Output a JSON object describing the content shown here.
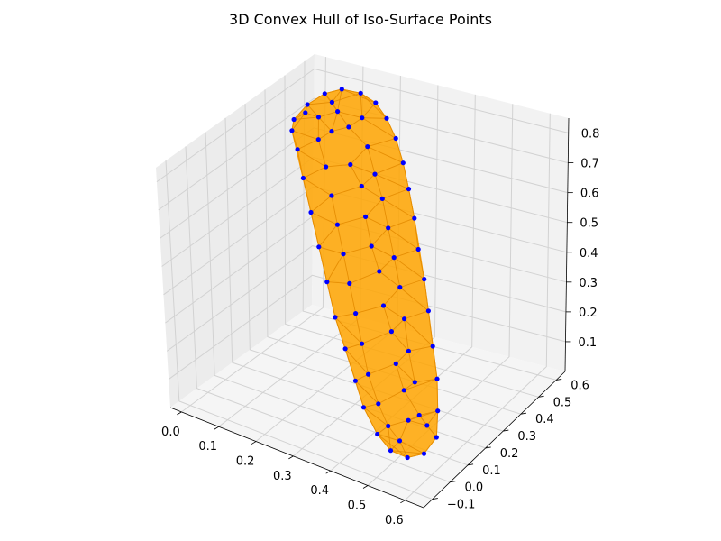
{
  "chart_data": {
    "type": "scatter",
    "subtype": "3d-convex-hull",
    "title": "3D Convex Hull of Iso-Surface Points",
    "xlabel": "",
    "ylabel": "",
    "zlabel": "",
    "x_ticks": [
      "0.0",
      "0.1",
      "0.2",
      "0.3",
      "0.4",
      "0.5",
      "0.6"
    ],
    "y_ticks": [
      "−0.1",
      "0.0",
      "0.1",
      "0.2",
      "0.3",
      "0.4",
      "0.5",
      "0.6"
    ],
    "z_ticks": [
      "0.1",
      "0.2",
      "0.3",
      "0.4",
      "0.5",
      "0.6",
      "0.7",
      "0.8"
    ],
    "xlim": [
      -0.03,
      0.65
    ],
    "ylim": [
      -0.15,
      0.65
    ],
    "zlim": [
      0.0,
      0.85
    ],
    "grid": true,
    "hull_color": "#ffa500",
    "hull_edge_color": "#f59a00",
    "point_color": "#0000ff",
    "points": [
      [
        0.02,
        0.45,
        0.74
      ],
      [
        0.03,
        0.5,
        0.77
      ],
      [
        0.05,
        0.55,
        0.79
      ],
      [
        0.08,
        0.58,
        0.8
      ],
      [
        0.12,
        0.6,
        0.79
      ],
      [
        0.16,
        0.6,
        0.77
      ],
      [
        0.2,
        0.58,
        0.74
      ],
      [
        0.24,
        0.55,
        0.7
      ],
      [
        0.28,
        0.51,
        0.65
      ],
      [
        0.32,
        0.46,
        0.6
      ],
      [
        0.36,
        0.41,
        0.54
      ],
      [
        0.4,
        0.35,
        0.48
      ],
      [
        0.44,
        0.3,
        0.42
      ],
      [
        0.48,
        0.24,
        0.36
      ],
      [
        0.52,
        0.18,
        0.29
      ],
      [
        0.56,
        0.12,
        0.23
      ],
      [
        0.59,
        0.06,
        0.17
      ],
      [
        0.61,
        0.01,
        0.12
      ],
      [
        0.6,
        -0.04,
        0.09
      ],
      [
        0.57,
        -0.07,
        0.08
      ],
      [
        0.53,
        -0.08,
        0.09
      ],
      [
        0.49,
        -0.07,
        0.12
      ],
      [
        0.44,
        -0.04,
        0.17
      ],
      [
        0.4,
        0.0,
        0.22
      ],
      [
        0.35,
        0.05,
        0.28
      ],
      [
        0.3,
        0.1,
        0.34
      ],
      [
        0.25,
        0.16,
        0.41
      ],
      [
        0.2,
        0.22,
        0.48
      ],
      [
        0.15,
        0.28,
        0.55
      ],
      [
        0.1,
        0.34,
        0.62
      ],
      [
        0.06,
        0.39,
        0.68
      ],
      [
        0.03,
        0.42,
        0.72
      ],
      [
        0.1,
        0.52,
        0.76
      ],
      [
        0.15,
        0.55,
        0.74
      ],
      [
        0.19,
        0.5,
        0.68
      ],
      [
        0.23,
        0.46,
        0.62
      ],
      [
        0.27,
        0.42,
        0.57
      ],
      [
        0.31,
        0.37,
        0.51
      ],
      [
        0.35,
        0.32,
        0.45
      ],
      [
        0.39,
        0.27,
        0.39
      ],
      [
        0.43,
        0.21,
        0.33
      ],
      [
        0.47,
        0.15,
        0.27
      ],
      [
        0.51,
        0.1,
        0.21
      ],
      [
        0.55,
        0.04,
        0.15
      ],
      [
        0.09,
        0.44,
        0.7
      ],
      [
        0.13,
        0.4,
        0.64
      ],
      [
        0.17,
        0.35,
        0.58
      ],
      [
        0.21,
        0.3,
        0.52
      ],
      [
        0.25,
        0.25,
        0.46
      ],
      [
        0.29,
        0.2,
        0.4
      ],
      [
        0.33,
        0.15,
        0.34
      ],
      [
        0.37,
        0.1,
        0.28
      ],
      [
        0.41,
        0.05,
        0.22
      ],
      [
        0.46,
        0.0,
        0.17
      ],
      [
        0.5,
        -0.03,
        0.13
      ],
      [
        0.54,
        -0.05,
        0.11
      ],
      [
        0.07,
        0.48,
        0.75
      ],
      [
        0.11,
        0.47,
        0.72
      ],
      [
        0.18,
        0.43,
        0.65
      ],
      [
        0.26,
        0.35,
        0.54
      ],
      [
        0.34,
        0.26,
        0.43
      ],
      [
        0.42,
        0.16,
        0.31
      ],
      [
        0.5,
        0.06,
        0.2
      ],
      [
        0.58,
        0.02,
        0.14
      ],
      [
        0.14,
        0.5,
        0.73
      ],
      [
        0.22,
        0.41,
        0.6
      ],
      [
        0.3,
        0.3,
        0.48
      ],
      [
        0.38,
        0.2,
        0.36
      ],
      [
        0.46,
        0.1,
        0.25
      ],
      [
        0.54,
        0.0,
        0.15
      ],
      [
        0.04,
        0.47,
        0.76
      ],
      [
        0.08,
        0.53,
        0.78
      ]
    ]
  }
}
